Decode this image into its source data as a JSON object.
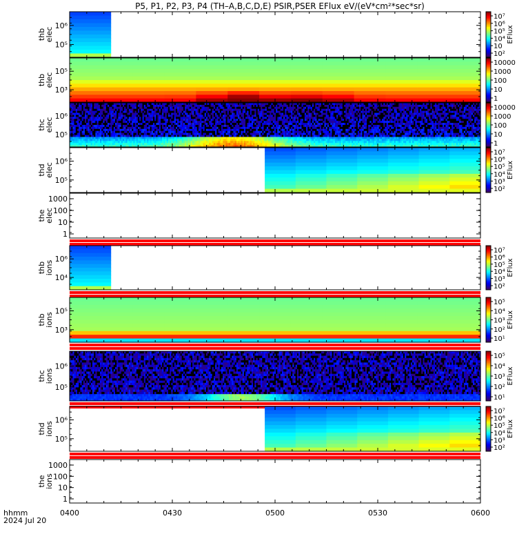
{
  "title": "P5, P1, P2, P3, P4 (TH–A,B,C,D,E) PSIR,PSER EFlux eV/(eV*cm²*sec*sr)",
  "x_axis": {
    "tick_labels": [
      "0400",
      "0430",
      "0500",
      "0530",
      "0600"
    ],
    "left_label_1": "hhmm",
    "left_label_2": "2024 Jul 20"
  },
  "colors": {
    "no_data_stripe": "#ff0000",
    "background": "#ffffff"
  },
  "chart_data": [
    {
      "type": "heatmap",
      "probe": "thb",
      "species": "elec",
      "y_label_1": "thb",
      "y_label_2": "elec",
      "y_ticks": [
        "10⁶",
        "10⁵"
      ],
      "x_start": "0400",
      "x_end": "0412",
      "colorbar": {
        "ticks": [
          "10⁷",
          "10⁶",
          "10⁵",
          "10⁴",
          "10⁳",
          "10²"
        ],
        "label": "EFlux"
      },
      "pattern": "blue-high"
    },
    {
      "type": "heatmap",
      "probe": "thb",
      "species": "elec",
      "y_label_1": "thb",
      "y_label_2": "elec",
      "y_ticks": [
        "10⁵",
        "10³"
      ],
      "x_start": "0400",
      "x_end": "0600",
      "colorbar": {
        "ticks": [
          "10000",
          "1000",
          "100",
          "10",
          "1"
        ],
        "label": ""
      },
      "pattern": "green-yellow-red-bottom"
    },
    {
      "type": "heatmap",
      "probe": "thc",
      "species": "elec",
      "y_label_1": "thc",
      "y_label_2": "elec",
      "y_ticks": [
        "10⁶",
        "10⁵"
      ],
      "x_start": "0400",
      "x_end": "0600",
      "colorbar": {
        "ticks": [
          "10000",
          "1000",
          "100",
          "10",
          "1"
        ],
        "label": ""
      },
      "pattern": "noisy-purple"
    },
    {
      "type": "heatmap",
      "probe": "thd",
      "species": "elec",
      "y_label_1": "thd",
      "y_label_2": "elec",
      "y_ticks": [
        "10⁶",
        "10⁵"
      ],
      "x_start": "0457",
      "x_end": "0600",
      "colorbar": {
        "ticks": [
          "10⁷",
          "10⁶",
          "10⁵",
          "10⁴",
          "10³",
          "10²"
        ],
        "label": "EFlux"
      },
      "pattern": "blue-to-green"
    },
    {
      "type": "empty",
      "probe": "the",
      "species": "elec",
      "y_label_1": "the",
      "y_label_2": "elec",
      "y_ticks": [
        "1000",
        "100",
        "10",
        "1"
      ],
      "no_data_stripe": true
    },
    {
      "type": "heatmap",
      "probe": "thb",
      "species": "ions",
      "y_label_1": "thb",
      "y_label_2": "ions",
      "y_ticks": [
        "10⁶",
        "10⁴"
      ],
      "x_start": "0400",
      "x_end": "0412",
      "colorbar": {
        "ticks": [
          "10⁷",
          "10⁶",
          "10⁵",
          "10⁴",
          "10³",
          "10²"
        ],
        "label": "EFlux"
      },
      "pattern": "blue-high",
      "no_data_stripe": true
    },
    {
      "type": "heatmap",
      "probe": "thb",
      "species": "ions",
      "y_label_1": "thb",
      "y_label_2": "ions",
      "y_ticks": [
        "10⁵",
        "10³"
      ],
      "x_start": "0400",
      "x_end": "0600",
      "colorbar": {
        "ticks": [
          "10⁵",
          "10⁴",
          "10³",
          "10²",
          "10¹"
        ],
        "label": "EFlux"
      },
      "pattern": "green-orange-bottom",
      "no_data_stripe": true
    },
    {
      "type": "heatmap",
      "probe": "thc",
      "species": "ions",
      "y_label_1": "thc",
      "y_label_2": "ions",
      "y_ticks": [
        "10⁶",
        "10⁵"
      ],
      "x_start": "0400",
      "x_end": "0600",
      "colorbar": {
        "ticks": [
          "10⁵",
          "10⁴",
          "10³",
          "10²",
          "10¹"
        ],
        "label": "EFlux"
      },
      "pattern": "noisy-purple-ions",
      "no_data_stripe": true
    },
    {
      "type": "heatmap",
      "probe": "thd",
      "species": "ions",
      "y_label_1": "thd",
      "y_label_2": "ions",
      "y_ticks": [
        "10⁶",
        "10⁵"
      ],
      "x_start": "0457",
      "x_end": "0600",
      "colorbar": {
        "ticks": [
          "10⁷",
          "10⁶",
          "10⁵",
          "10⁴",
          "10³",
          "10²"
        ],
        "label": "EFlux"
      },
      "pattern": "blue-to-green",
      "no_data_stripe": true
    },
    {
      "type": "empty",
      "probe": "the",
      "species": "ions",
      "y_label_1": "the",
      "y_label_2": "ions",
      "y_ticks": [
        "1000",
        "100",
        "10",
        "1"
      ]
    }
  ]
}
